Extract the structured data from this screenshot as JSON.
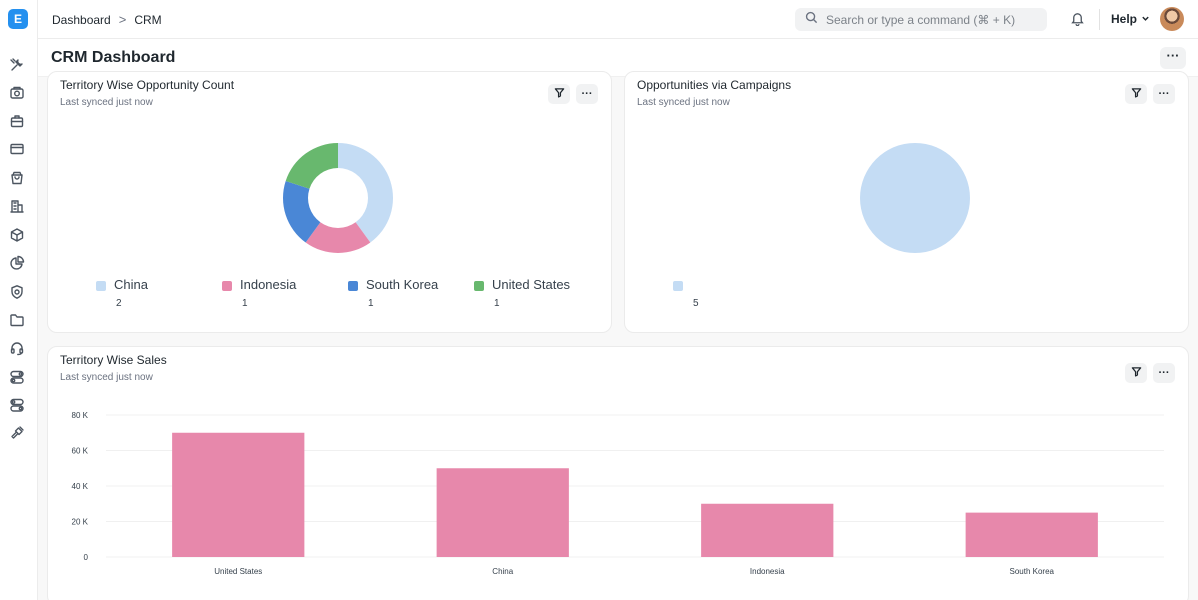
{
  "app": {
    "logo_letter": "E"
  },
  "breadcrumb": {
    "items": [
      "Dashboard",
      "CRM"
    ],
    "separator": ">"
  },
  "search": {
    "placeholder": "Search or type a command (⌘ + K)"
  },
  "header": {
    "help_label": "Help",
    "notifications_icon": "bell-icon"
  },
  "page": {
    "title": "CRM Dashboard",
    "menu_label": "···"
  },
  "sidebar": {
    "icons": [
      "tools-icon",
      "camera-icon",
      "briefcase-icon",
      "card-icon",
      "bag-icon",
      "building-icon",
      "package-icon",
      "pie-chart-icon",
      "shield-icon",
      "folder-icon",
      "headset-icon",
      "toggle-icon",
      "toggle-alt-icon",
      "plug-icon"
    ]
  },
  "cards": {
    "territory_count": {
      "title": "Territory Wise Opportunity Count",
      "subtitle": "Last synced just now",
      "menu_label": "···"
    },
    "campaigns": {
      "title": "Opportunities via Campaigns",
      "subtitle": "Last synced just now",
      "menu_label": "···"
    },
    "territory_sales": {
      "title": "Territory Wise Sales",
      "subtitle": "Last synced just now",
      "menu_label": "···"
    }
  },
  "colors": {
    "accent": "#2490ef",
    "light_blue": "#c4dcf4",
    "pink": "#e788ab",
    "blue": "#4a87d6",
    "green": "#68b86e"
  },
  "chart_data": [
    {
      "type": "pie",
      "variant": "donut",
      "categories": [
        "China",
        "Indonesia",
        "South Korea",
        "United States"
      ],
      "values": [
        2,
        1,
        1,
        1
      ],
      "colors": [
        "#c4dcf4",
        "#e788ab",
        "#4a87d6",
        "#68b86e"
      ],
      "legend": "bottom"
    },
    {
      "type": "pie",
      "categories": [
        ""
      ],
      "values": [
        5
      ],
      "colors": [
        "#c4dcf4"
      ],
      "legend": "bottom"
    },
    {
      "type": "bar",
      "categories": [
        "United States",
        "China",
        "Indonesia",
        "South Korea"
      ],
      "values": [
        70000,
        50000,
        30000,
        25000
      ],
      "color": "#e788ab",
      "ylim": [
        0,
        80000
      ],
      "yticks": [
        0,
        20000,
        40000,
        60000,
        80000
      ],
      "ytick_labels": [
        "0",
        "20 K",
        "40 K",
        "60 K",
        "80 K"
      ],
      "grid": true,
      "xlabel": "",
      "ylabel": ""
    }
  ]
}
